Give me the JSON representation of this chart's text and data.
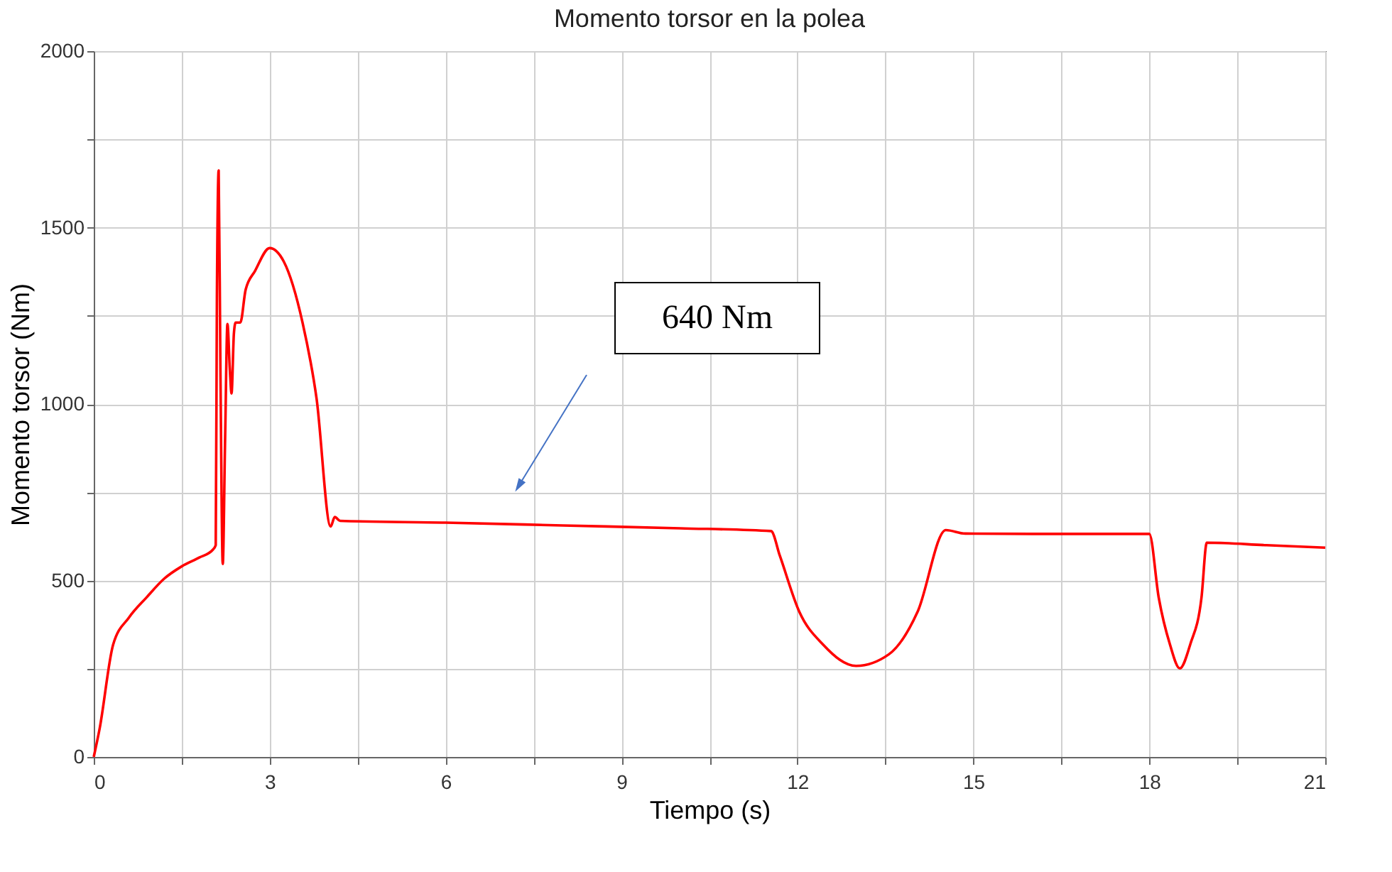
{
  "chart_data": {
    "type": "line",
    "title": "Momento torsor en la polea",
    "xlabel": "Tiempo (s)",
    "ylabel": "Momento torsor (Nm)",
    "series": [
      {
        "color": "#ff0000",
        "x": [
          0,
          0.1,
          0.33,
          0.6,
          0.9,
          1.2,
          1.5,
          1.8,
          2.03,
          2.08,
          2.1,
          2.13,
          2.16,
          2.2,
          2.24,
          2.28,
          2.32,
          2.35,
          2.39,
          2.42,
          2.5,
          2.59,
          2.75,
          3.0,
          3.24,
          3.56,
          3.8,
          4.04,
          4.11,
          4.2,
          6,
          8,
          10,
          11.55,
          11.7,
          12.03,
          12.44,
          13.0,
          13.56,
          14.05,
          14.53,
          14.86,
          16,
          18.0,
          18.16,
          18.35,
          18.52,
          18.7,
          18.89,
          18.98,
          20,
          21
        ],
        "values": [
          0,
          80,
          318,
          395,
          452,
          505,
          540,
          565,
          587,
          600,
          1300,
          1662,
          1100,
          547,
          900,
          1227,
          1100,
          1030,
          1200,
          1231,
          1231,
          1324,
          1377,
          1442,
          1404,
          1231,
          1015,
          653,
          680,
          669,
          664,
          656,
          648,
          640,
          570,
          412,
          318,
          258,
          291,
          412,
          643,
          633,
          632,
          632,
          452,
          320,
          251,
          320,
          452,
          607,
          600,
          593
        ]
      }
    ],
    "xlim": [
      0,
      21
    ],
    "ylim": [
      0,
      2000
    ],
    "xticks": [
      0,
      {
        "value": 1.5,
        "label": null
      },
      3,
      {
        "value": 4.5,
        "label": null
      },
      6,
      {
        "value": 7.5,
        "label": null
      },
      9,
      {
        "value": 10.5,
        "label": null
      },
      12,
      {
        "value": 13.5,
        "label": null
      },
      15,
      {
        "value": 16.5,
        "label": null
      },
      18,
      {
        "value": 19.5,
        "label": null
      },
      21
    ],
    "yticks": [
      0,
      {
        "value": 250,
        "label": null
      },
      500,
      {
        "value": 750,
        "label": null
      },
      1000,
      {
        "value": 1250,
        "label": null
      },
      1500,
      {
        "value": 1750,
        "label": null
      },
      2000
    ],
    "grid": true,
    "marker": "none",
    "line_style": "solid",
    "annotations": [
      "640 Nm"
    ]
  }
}
